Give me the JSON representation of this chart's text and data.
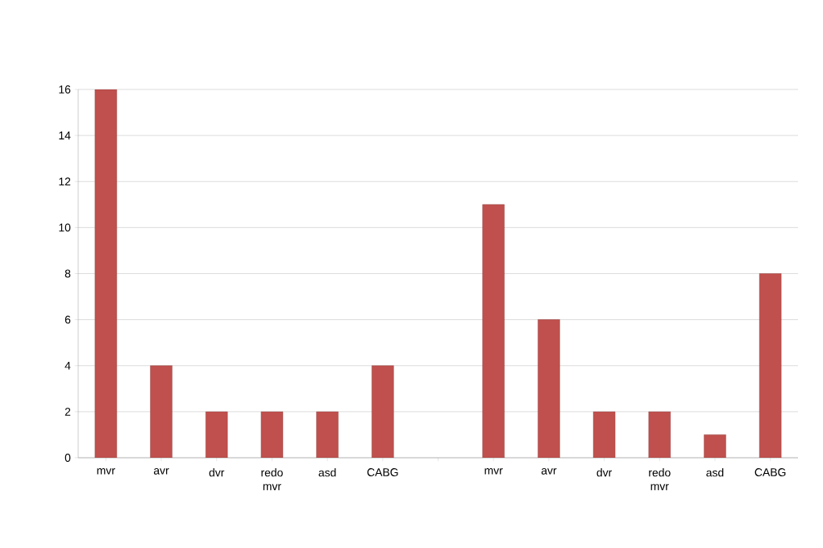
{
  "chart_data": {
    "type": "bar",
    "categories": [
      "mvr",
      "avr",
      "dvr",
      "redo mvr",
      "asd",
      "CABG",
      null,
      "mvr",
      "avr",
      "dvr",
      "redo mvr",
      "asd",
      "CABG"
    ],
    "values": [
      16,
      4,
      2,
      2,
      2,
      4,
      null,
      11,
      6,
      2,
      2,
      1,
      8
    ],
    "color": "#c0504d",
    "ylim": [
      0,
      16
    ],
    "yticks": [
      0,
      2,
      4,
      6,
      8,
      10,
      12,
      14,
      16
    ],
    "grid": "y"
  }
}
